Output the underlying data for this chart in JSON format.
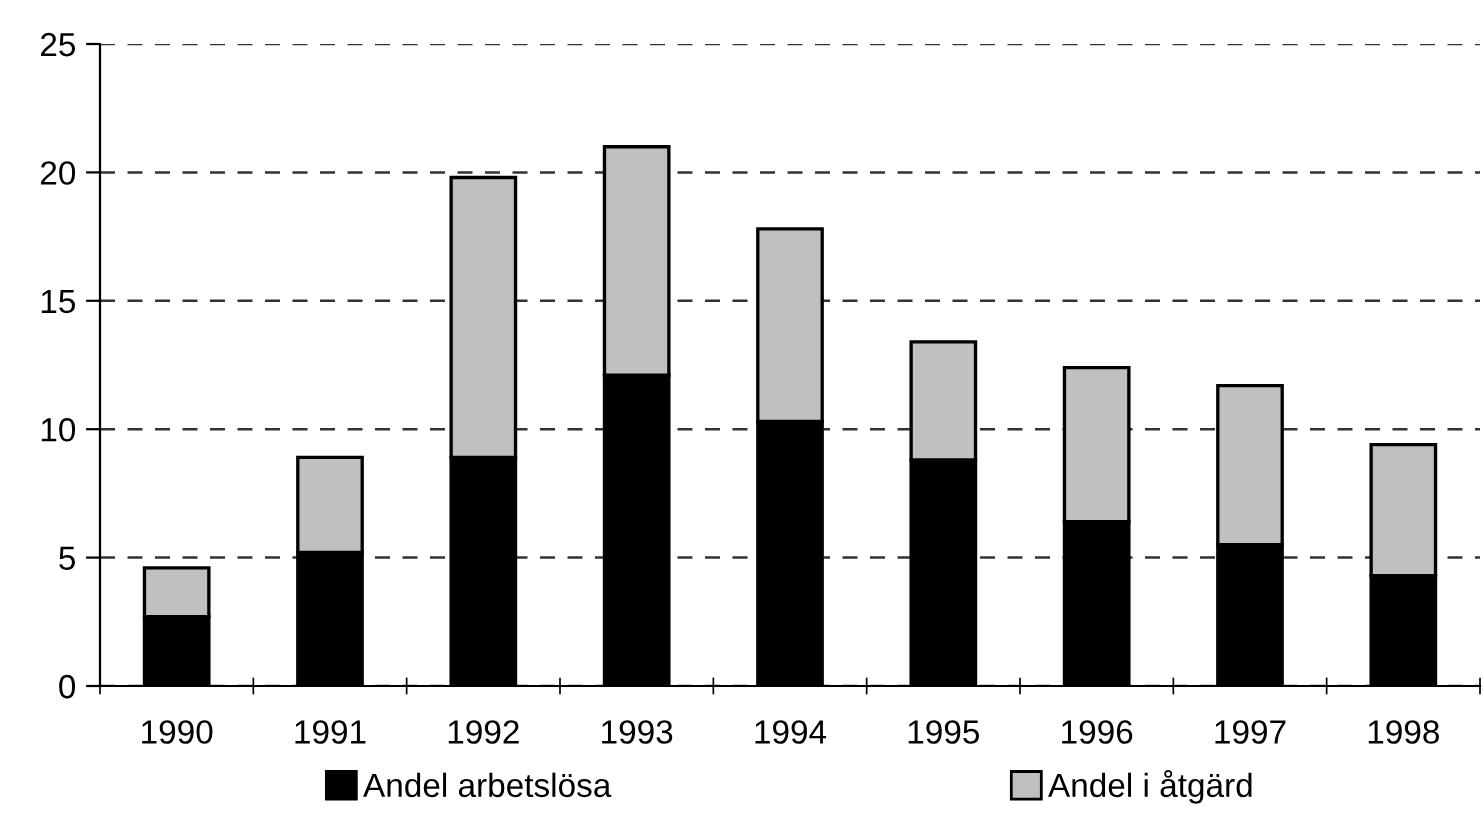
{
  "chart_data": {
    "type": "bar",
    "stacked": true,
    "categories": [
      "1990",
      "1991",
      "1992",
      "1993",
      "1994",
      "1995",
      "1996",
      "1997",
      "1998"
    ],
    "series": [
      {
        "name": "Andel arbetslösa",
        "color": "#000000",
        "values": [
          2.7,
          5.2,
          8.9,
          12.1,
          10.3,
          8.8,
          6.4,
          5.5,
          4.3
        ]
      },
      {
        "name": "Andel i åtgärd",
        "color": "#c0c0c0",
        "values": [
          1.9,
          3.7,
          10.9,
          8.9,
          7.5,
          4.6,
          6.0,
          6.2,
          5.1
        ]
      }
    ],
    "ylim": [
      0,
      25
    ],
    "yticks": [
      0,
      5,
      10,
      15,
      20,
      25
    ],
    "grid": "y",
    "legend": "bottom"
  }
}
